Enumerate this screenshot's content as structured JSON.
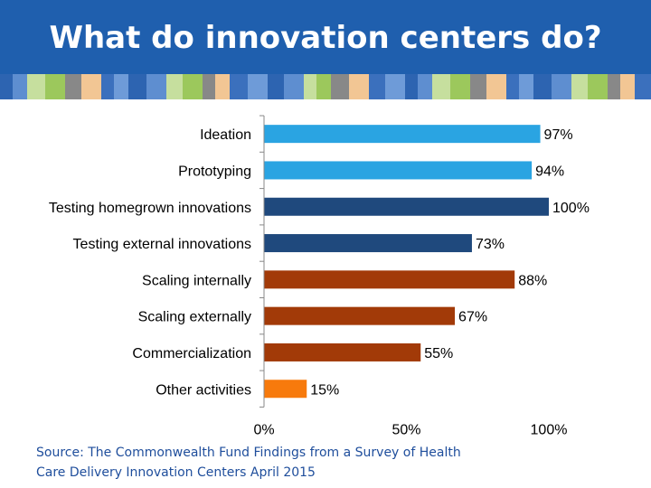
{
  "header": {
    "title": "What do innovation centers do?"
  },
  "colors": {
    "header_bg": "#1f5fae",
    "bar_blue": "#2aa4e2",
    "bar_navy": "#1f497d",
    "bar_rust": "#a23a08",
    "bar_orange": "#f77a0c",
    "stripe": [
      "#2d64b1",
      "#5e8ed0",
      "#c6df9e",
      "#9cc85c",
      "#888888",
      "#f2c694",
      "#3b70bd",
      "#6e9bd8"
    ]
  },
  "chart_data": {
    "type": "bar",
    "orientation": "horizontal",
    "categories": [
      "Ideation",
      "Prototyping",
      "Testing homegrown innovations",
      "Testing external innovations",
      "Scaling internally",
      "Scaling externally",
      "Commercialization",
      "Other activities"
    ],
    "values": [
      97,
      94,
      100,
      73,
      88,
      67,
      55,
      15
    ],
    "value_labels": [
      "97%",
      "94%",
      "100%",
      "73%",
      "88%",
      "67%",
      "55%",
      "15%"
    ],
    "bar_colors": [
      "#2aa4e2",
      "#2aa4e2",
      "#1f497d",
      "#1f497d",
      "#a23a08",
      "#a23a08",
      "#a23a08",
      "#f77a0c"
    ],
    "xlim": [
      0,
      100
    ],
    "xticks": [
      0,
      50,
      100
    ],
    "xtick_labels": [
      "0%",
      "50%",
      "100%"
    ],
    "grid": false,
    "legend": "none"
  },
  "footer": {
    "source": "Source: The Commonwealth Fund Findings from a Survey of Health\nCare Delivery Innovation Centers April 2015"
  }
}
